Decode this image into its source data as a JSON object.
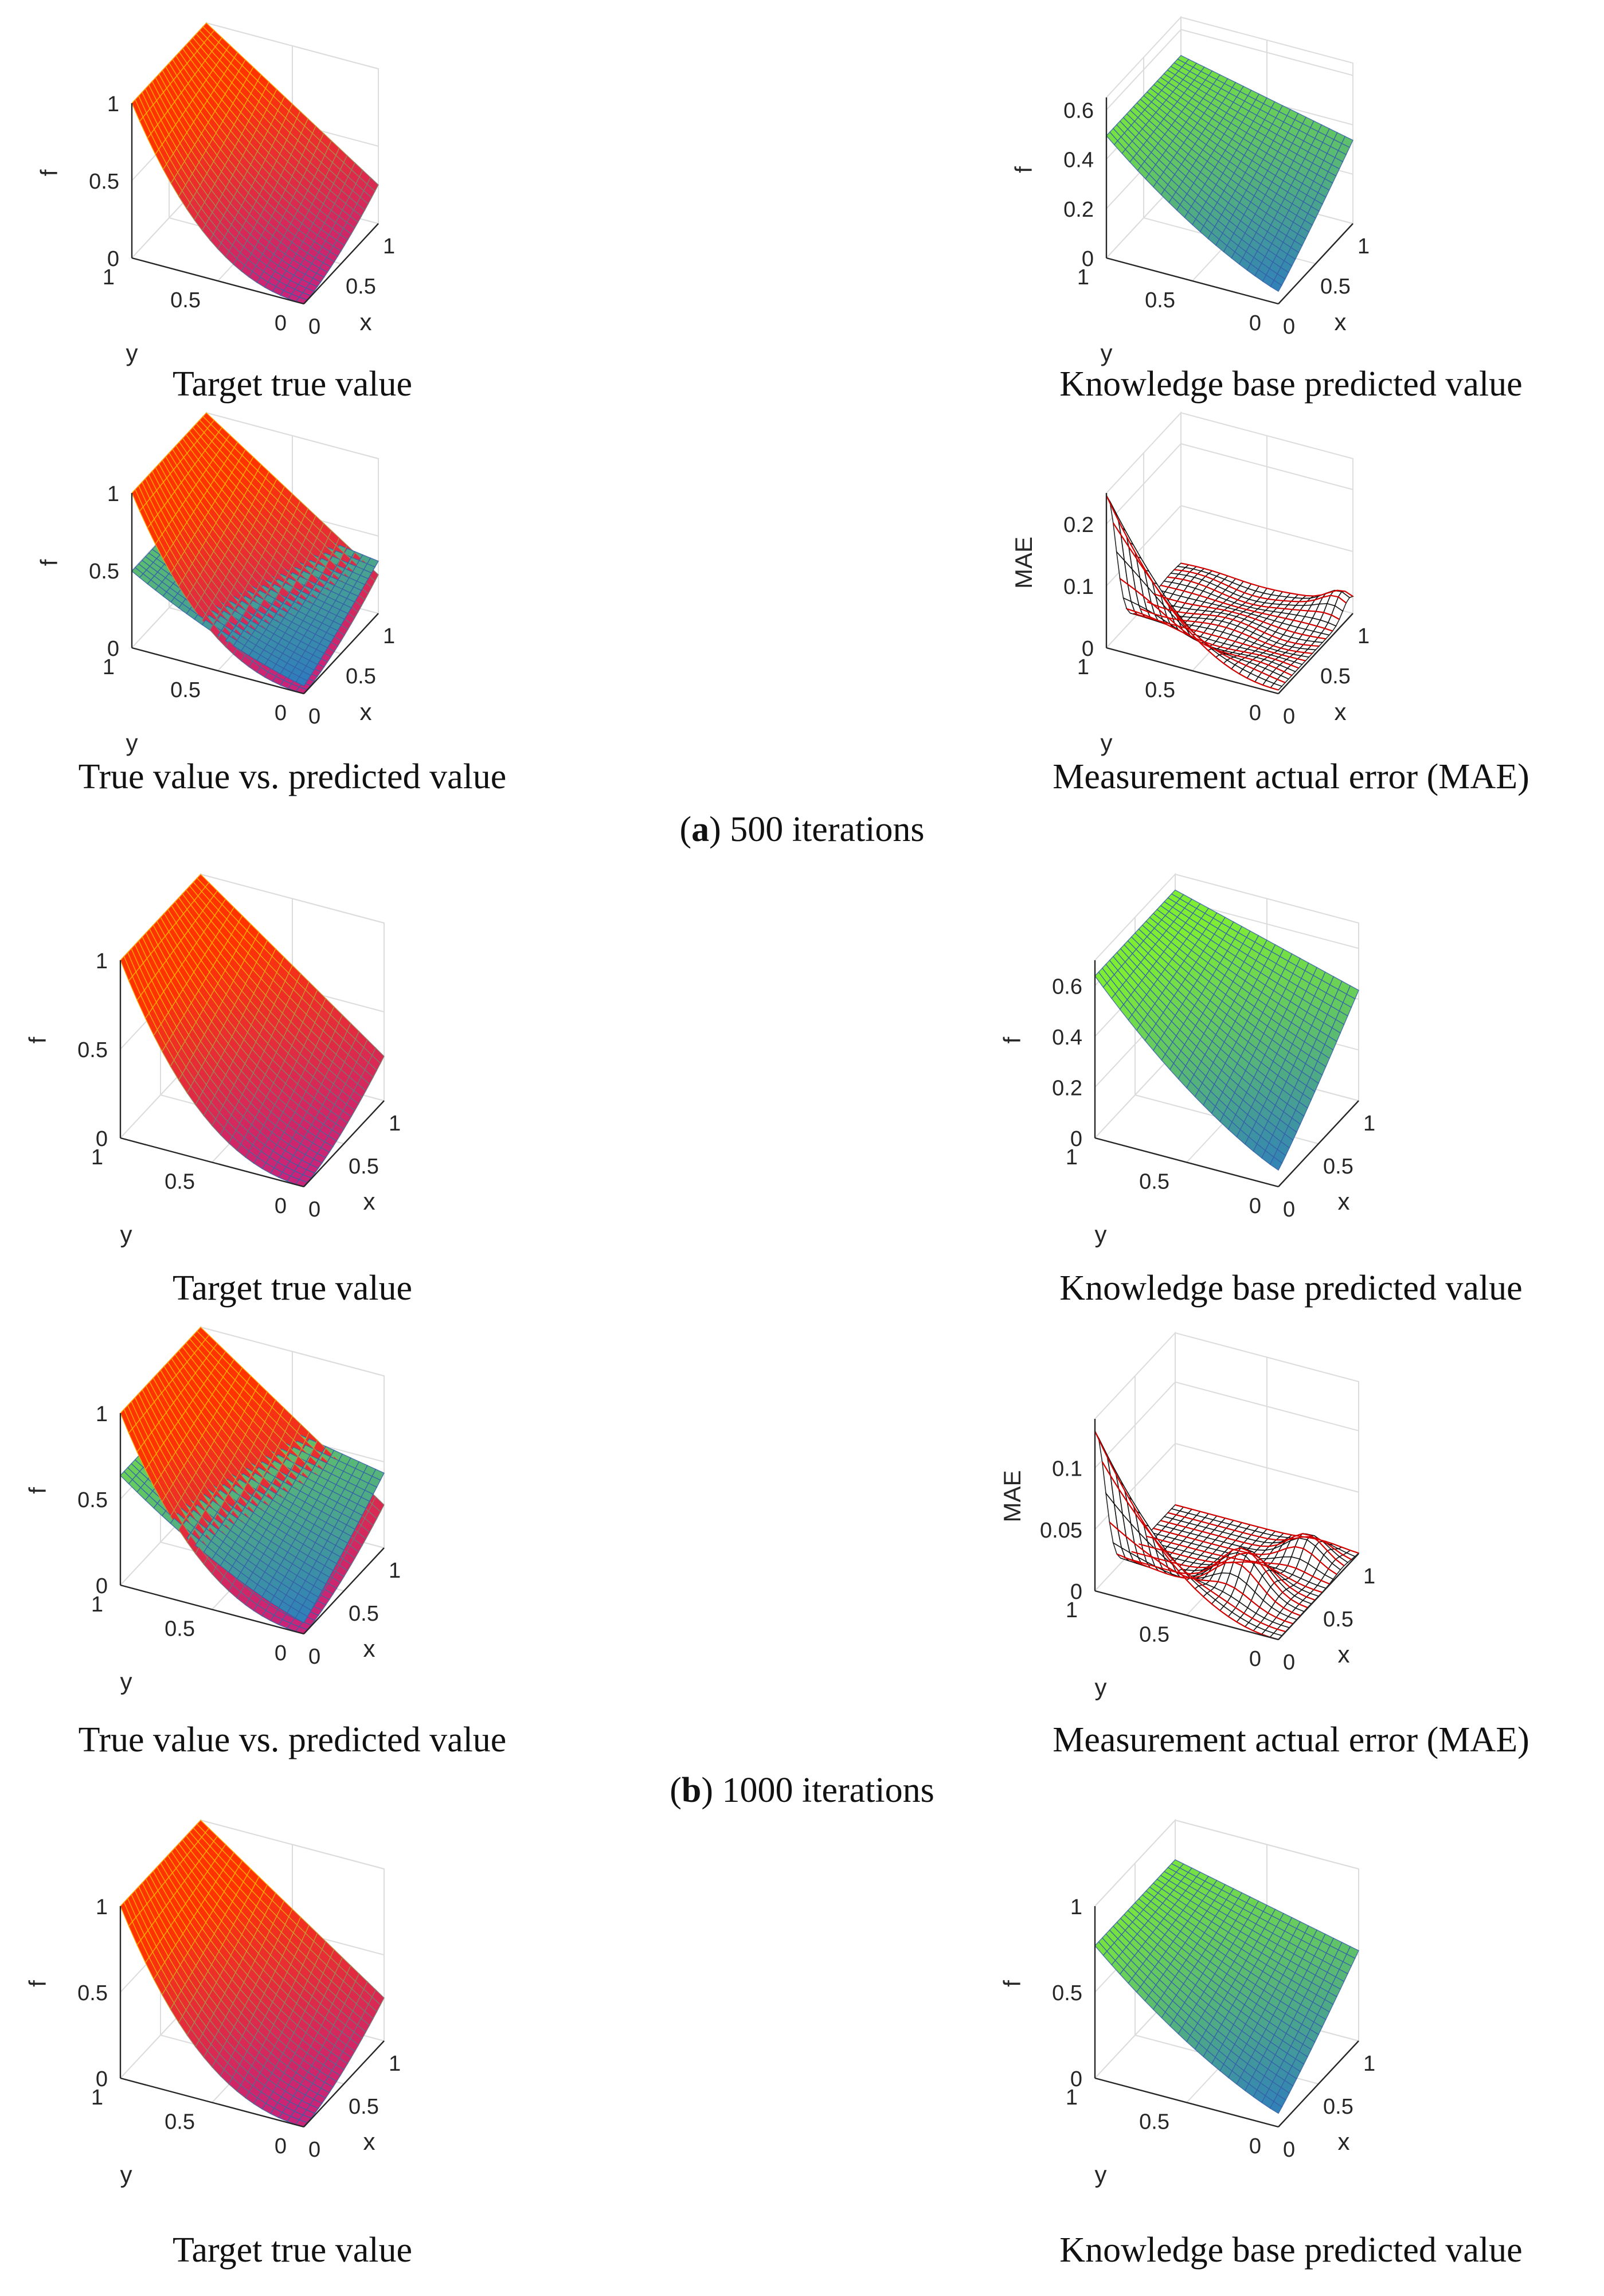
{
  "surface_colors": {
    "target_low": "#c8247a",
    "target_high": "#ff3300",
    "target_grid": "#ffb400",
    "pred_low": "#2874c8",
    "pred_high": "#7fee33",
    "pred_grid": "#3560a8",
    "error_fill": "#ffffff",
    "error_grid": "#000000",
    "error_edge": "#d40000",
    "axis": "#262626",
    "gridline": "#dcdcdc"
  },
  "sections": [
    {
      "letter": "a",
      "text": " 500 iterations"
    },
    {
      "letter": "b",
      "text": " 1000 iterations"
    }
  ],
  "chart_data": [
    {
      "id": "a1",
      "type": "surface3d",
      "surface": "target",
      "title": "Target true value",
      "xlabel": "x",
      "ylabel": "y",
      "zlabel": "f",
      "xlim": [
        0,
        1
      ],
      "ylim": [
        0,
        1
      ],
      "zlim": [
        0,
        1
      ],
      "xticks": [
        "0",
        "0.5",
        "1"
      ],
      "yticks": [
        "0",
        "0.5",
        "1"
      ],
      "zticks": [
        "0",
        "0.5",
        "1"
      ],
      "zvals": [
        0,
        0.5,
        1
      ],
      "grid": true
    },
    {
      "id": "a2",
      "type": "surface3d",
      "surface": "pred",
      "pred_a": 0.45,
      "pred_b": 0.65,
      "title": "Knowledge base predicted value",
      "xlabel": "x",
      "ylabel": "y",
      "zlabel": "f",
      "xlim": [
        0,
        1
      ],
      "ylim": [
        0,
        1
      ],
      "zlim": [
        0,
        0.65
      ],
      "xticks": [
        "0",
        "0.5",
        "1"
      ],
      "yticks": [
        "0",
        "0.5",
        "1"
      ],
      "zticks": [
        "0",
        "0.2",
        "0.4",
        "0.6"
      ],
      "zvals": [
        0,
        0.2,
        0.4,
        0.6
      ],
      "grid": true
    },
    {
      "id": "a3",
      "type": "surface3d",
      "surface": "both",
      "pred_a": 0.45,
      "pred_b": 0.65,
      "title": "True value vs. predicted value",
      "xlabel": "x",
      "ylabel": "y",
      "zlabel": "f",
      "xlim": [
        0,
        1
      ],
      "ylim": [
        0,
        1
      ],
      "zlim": [
        0,
        1
      ],
      "xticks": [
        "0",
        "0.5",
        "1"
      ],
      "yticks": [
        "0",
        "0.5",
        "1"
      ],
      "zticks": [
        "0",
        "0.5",
        "1"
      ],
      "zvals": [
        0,
        0.5,
        1
      ],
      "grid": true
    },
    {
      "id": "a4",
      "type": "surface3d",
      "surface": "error",
      "err_peak": 0.24,
      "err_bump": 0.03,
      "err_mode": 1,
      "title": "Measurement actual error (MAE)",
      "xlabel": "x",
      "ylabel": "y",
      "zlabel": "MAE",
      "xlim": [
        0,
        1
      ],
      "ylim": [
        0,
        1
      ],
      "zlim": [
        0,
        0.25
      ],
      "xticks": [
        "0",
        "0.5",
        "1"
      ],
      "yticks": [
        "0",
        "0.5",
        "1"
      ],
      "zticks": [
        "0",
        "0.1",
        "0.2"
      ],
      "zvals": [
        0,
        0.1,
        0.2
      ],
      "grid": true
    },
    {
      "id": "b1",
      "type": "surface3d",
      "surface": "target",
      "title": "Target true value",
      "xlabel": "x",
      "ylabel": "y",
      "zlabel": "f",
      "xlim": [
        0,
        1
      ],
      "ylim": [
        0,
        1
      ],
      "zlim": [
        0,
        1
      ],
      "xticks": [
        "0",
        "0.5",
        "1"
      ],
      "yticks": [
        "0",
        "0.5",
        "1"
      ],
      "zticks": [
        "0",
        "0.5",
        "1"
      ],
      "zvals": [
        0,
        0.5,
        1
      ],
      "grid": true
    },
    {
      "id": "b2",
      "type": "surface3d",
      "surface": "pred",
      "pred_a": 0.58,
      "pred_b": 0.7,
      "title": "Knowledge base predicted value",
      "xlabel": "x",
      "ylabel": "y",
      "zlabel": "f",
      "xlim": [
        0,
        1
      ],
      "ylim": [
        0,
        1
      ],
      "zlim": [
        0,
        0.7
      ],
      "xticks": [
        "0",
        "0.5",
        "1"
      ],
      "yticks": [
        "0",
        "0.5",
        "1"
      ],
      "zticks": [
        "0",
        "0.2",
        "0.4",
        "0.6"
      ],
      "zvals": [
        0,
        0.2,
        0.4,
        0.6
      ],
      "grid": true
    },
    {
      "id": "b3",
      "type": "surface3d",
      "surface": "both",
      "pred_a": 0.58,
      "pred_b": 0.7,
      "title": "True value vs. predicted value",
      "xlabel": "x",
      "ylabel": "y",
      "zlabel": "f",
      "xlim": [
        0,
        1
      ],
      "ylim": [
        0,
        1
      ],
      "zlim": [
        0,
        1
      ],
      "xticks": [
        "0",
        "0.5",
        "1"
      ],
      "yticks": [
        "0",
        "0.5",
        "1"
      ],
      "zticks": [
        "0",
        "0.5",
        "1"
      ],
      "zvals": [
        0,
        0.5,
        1
      ],
      "grid": true
    },
    {
      "id": "b4",
      "type": "surface3d",
      "surface": "error",
      "err_peak": 0.13,
      "err_bump": 0.035,
      "err_mode": 2,
      "title": "Measurement actual error (MAE)",
      "xlabel": "x",
      "ylabel": "y",
      "zlabel": "MAE",
      "xlim": [
        0,
        1
      ],
      "ylim": [
        0,
        1
      ],
      "zlim": [
        0,
        0.14
      ],
      "xticks": [
        "0",
        "0.5",
        "1"
      ],
      "yticks": [
        "0",
        "0.5",
        "1"
      ],
      "zticks": [
        "0",
        "0.05",
        "0.1"
      ],
      "zvals": [
        0,
        0.05,
        0.1
      ],
      "grid": true
    },
    {
      "id": "c1",
      "type": "surface3d",
      "surface": "target",
      "title": "Target true value",
      "xlabel": "x",
      "ylabel": "y",
      "zlabel": "f",
      "xlim": [
        0,
        1
      ],
      "ylim": [
        0,
        1
      ],
      "zlim": [
        0,
        1
      ],
      "xticks": [
        "0",
        "0.5",
        "1"
      ],
      "yticks": [
        "0",
        "0.5",
        "1"
      ],
      "zticks": [
        "0",
        "0.5",
        "1"
      ],
      "zvals": [
        0,
        0.5,
        1
      ],
      "grid": true
    },
    {
      "id": "c2",
      "type": "surface3d",
      "surface": "pred",
      "pred_a": 0.7,
      "pred_b": 0.9,
      "title": "Knowledge base predicted value",
      "xlabel": "x",
      "ylabel": "y",
      "zlabel": "f",
      "xlim": [
        0,
        1
      ],
      "ylim": [
        0,
        1
      ],
      "zlim": [
        0,
        1
      ],
      "xticks": [
        "0",
        "0.5",
        "1"
      ],
      "yticks": [
        "0",
        "0.5",
        "1"
      ],
      "zticks": [
        "0",
        "0.5",
        "1"
      ],
      "zvals": [
        0,
        0.5,
        1
      ],
      "grid": true
    }
  ]
}
